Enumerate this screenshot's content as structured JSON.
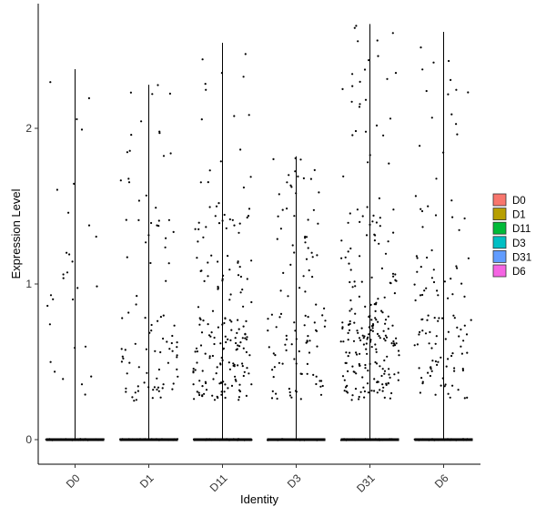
{
  "chart_data": {
    "type": "violin",
    "title": "",
    "xlabel": "Identity",
    "ylabel": "Expression Level",
    "ylim": [
      -0.14,
      2.78
    ],
    "yticks": [
      0,
      1,
      2
    ],
    "categories": [
      "D0",
      "D1",
      "D11",
      "D3",
      "D31",
      "D6"
    ],
    "violin_max": [
      2.38,
      2.28,
      2.55,
      1.82,
      2.67,
      2.62
    ],
    "points_per_group": [
      30,
      95,
      190,
      110,
      230,
      120
    ],
    "zero_points_per_group": [
      60,
      60,
      60,
      60,
      60,
      60
    ],
    "jitter_seed": 7,
    "legend": {
      "position": "right",
      "entries": [
        {
          "label": "D0",
          "color": "#F8766D"
        },
        {
          "label": "D1",
          "color": "#B79F00"
        },
        {
          "label": "D11",
          "color": "#00BA38"
        },
        {
          "label": "D3",
          "color": "#00BFC4"
        },
        {
          "label": "D31",
          "color": "#619CFF"
        },
        {
          "label": "D6",
          "color": "#F564E3"
        }
      ]
    },
    "grid": false
  }
}
